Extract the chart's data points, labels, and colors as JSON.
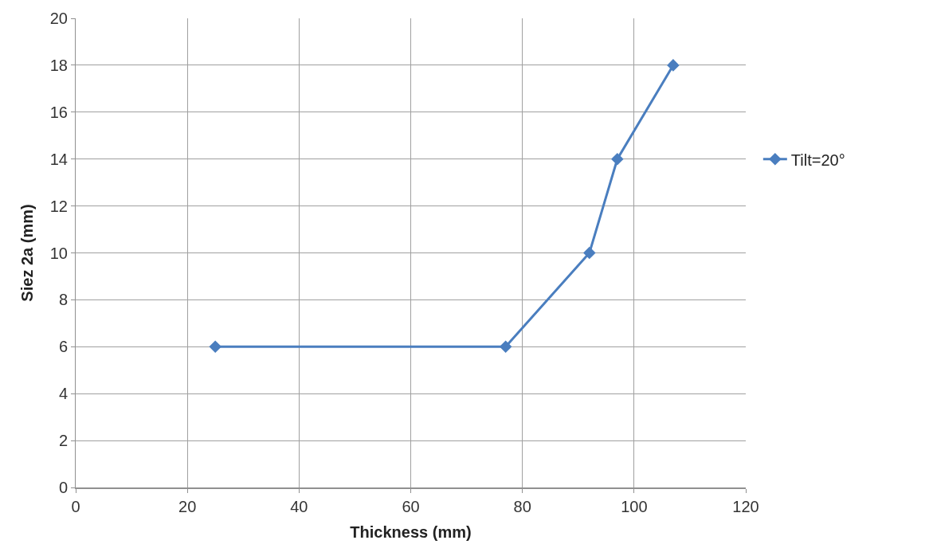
{
  "chart_data": {
    "type": "line",
    "xlabel": "Thickness (mm)",
    "ylabel": "Siez 2a (mm)",
    "x": [
      25,
      77,
      92,
      97,
      107
    ],
    "series": [
      {
        "name": "Tilt=20°",
        "color": "#4a7ebf",
        "values": [
          6,
          6,
          10,
          14,
          18
        ]
      }
    ],
    "xlim": [
      0,
      120
    ],
    "xticks": [
      0,
      20,
      40,
      60,
      80,
      100,
      120
    ],
    "ylim": [
      0,
      20
    ],
    "yticks": [
      0,
      2,
      4,
      6,
      8,
      10,
      12,
      14,
      16,
      18,
      20
    ],
    "grid": true,
    "legend": "right",
    "marker": "diamond",
    "line_style": "solid"
  }
}
